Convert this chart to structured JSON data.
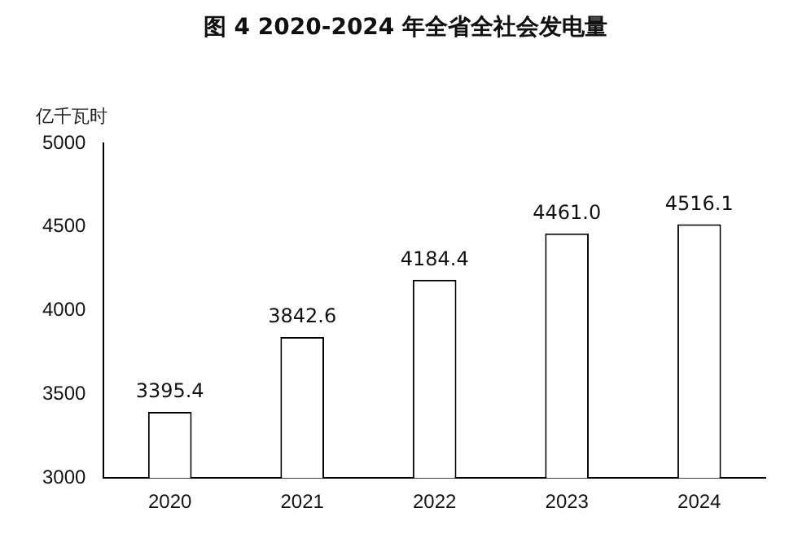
{
  "chart_data": {
    "type": "bar",
    "title": "图 4   2020-2024 年全省全社会发电量",
    "ylabel": "亿千瓦时",
    "categories": [
      "2020",
      "2021",
      "2022",
      "2023",
      "2024"
    ],
    "values": [
      3395.4,
      3842.6,
      4184.4,
      4461.0,
      4516.1
    ],
    "value_labels": [
      "3395.4",
      "3842.6",
      "4184.4",
      "4461.0",
      "4516.1"
    ],
    "color": "#ffffff",
    "ylim": [
      3000,
      5000
    ],
    "yticks": [
      3000,
      3500,
      4000,
      4500,
      5000
    ],
    "grid": false,
    "legend": false
  }
}
